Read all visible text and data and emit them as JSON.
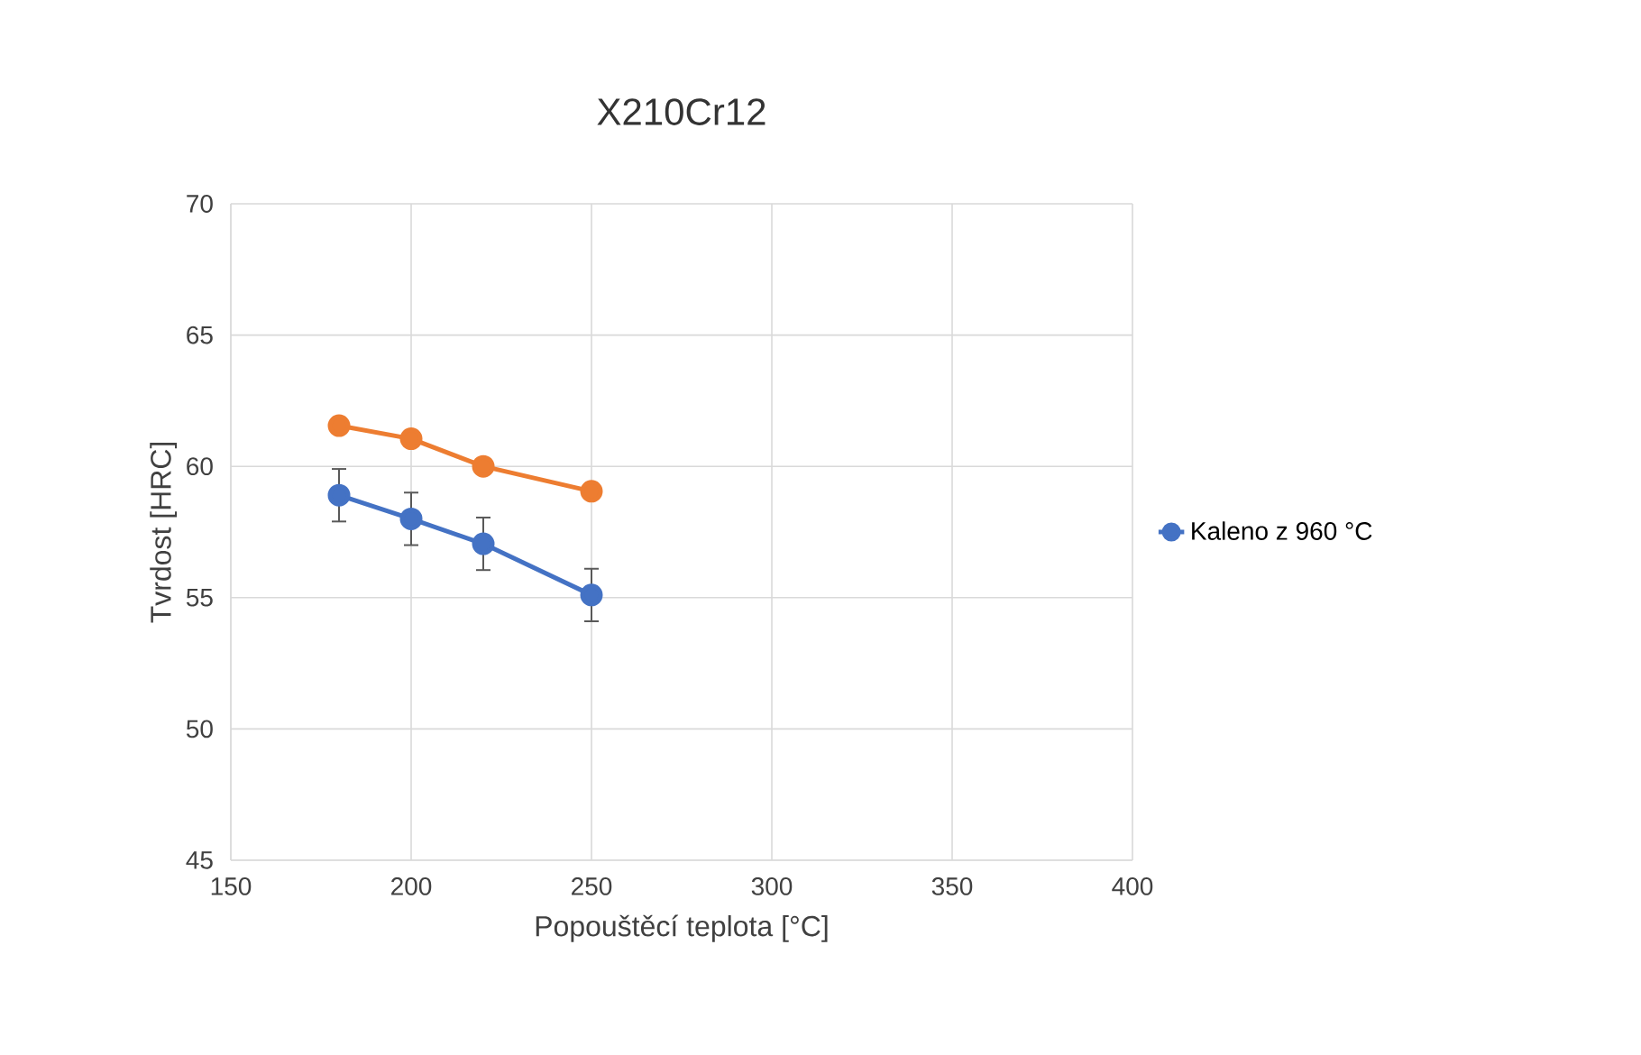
{
  "chart_data": {
    "type": "line",
    "title": "X210Cr12",
    "xlabel": "Popouštěcí teplota [°C]",
    "ylabel": "Tvrdost [HRC]",
    "x": [
      180,
      200,
      220,
      250
    ],
    "series": [
      {
        "name": "Kaleno z 960 °C",
        "color": "#4472c4",
        "values": [
          58.9,
          58.0,
          57.05,
          55.1
        ],
        "errors": [
          1,
          1,
          1,
          1
        ]
      },
      {
        "color": "#ed7d31",
        "values": [
          61.55,
          61.05,
          60.0,
          59.05
        ]
      }
    ],
    "xlim": [
      150,
      400
    ],
    "xticks": [
      150,
      200,
      250,
      300,
      350,
      400
    ],
    "ylim": [
      45,
      70
    ],
    "yticks": [
      45,
      50,
      55,
      60,
      65,
      70
    ],
    "grid": true,
    "legend": "right",
    "marker": "circle",
    "line_style": "solid"
  }
}
